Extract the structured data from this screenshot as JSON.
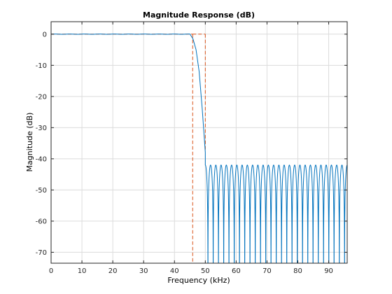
{
  "chart_data": {
    "type": "line",
    "title": "Magnitude Response (dB)",
    "xlabel": "Frequency (kHz)",
    "ylabel": "Magnitude (dB)",
    "xlim": [
      0,
      96
    ],
    "ylim": [
      -73.5,
      4
    ],
    "grid": true,
    "x_ticks": [
      0,
      10,
      20,
      30,
      40,
      50,
      60,
      70,
      80,
      90
    ],
    "y_ticks": [
      0,
      -10,
      -20,
      -30,
      -40,
      -50,
      -60,
      -70
    ],
    "series": [
      {
        "kind": "response",
        "color": "#0072bd",
        "passband_edge_khz": 45.9,
        "transition_end_khz": 50,
        "passband_db": 0,
        "stopband_ripple_max_db": -42,
        "stopband_ripple_count": 27,
        "x": [
          0,
          40,
          45,
          46,
          47,
          48,
          49,
          50
        ],
        "y": [
          0,
          0,
          -0.2,
          -1.5,
          -5,
          -12,
          -24,
          -38
        ]
      },
      {
        "kind": "spec-mask",
        "color": "#d95319",
        "dashed": true,
        "segments": [
          {
            "x": [
              0,
              45.9
            ],
            "y": [
              0,
              0
            ]
          },
          {
            "x": [
              45.9,
              45.9
            ],
            "y": [
              0,
              -73.5
            ]
          },
          {
            "x": [
              45.9,
              50
            ],
            "y": [
              0,
              0
            ]
          },
          {
            "x": [
              50,
              50
            ],
            "y": [
              0,
              -37
            ]
          }
        ]
      }
    ]
  }
}
